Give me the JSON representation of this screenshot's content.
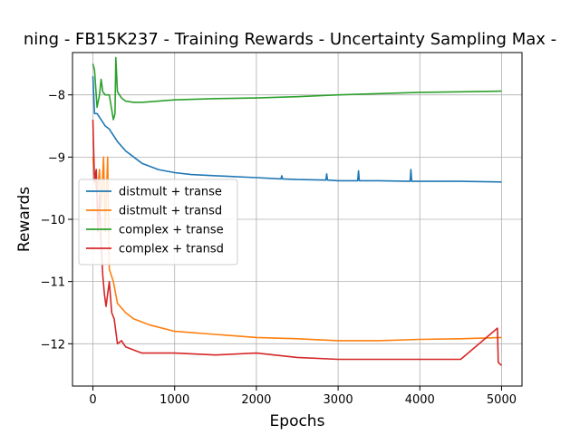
{
  "chart_data": {
    "type": "line",
    "title": "ning - FB15K237 - Training Rewards - Uncertainty Sampling Max -",
    "xlabel": "Epochs",
    "ylabel": "Rewards",
    "xlim": [
      -250,
      5250
    ],
    "ylim": [
      -12.68,
      -7.32
    ],
    "xticks": [
      0,
      1000,
      2000,
      3000,
      4000,
      5000
    ],
    "xtick_labels": [
      "0",
      "1000",
      "2000",
      "3000",
      "4000",
      "5000"
    ],
    "yticks": [
      -8,
      -9,
      -10,
      -11,
      -12
    ],
    "ytick_labels": [
      "−8",
      "−9",
      "−10",
      "−11",
      "−12"
    ],
    "grid": true,
    "legend_position": "center-left",
    "series": [
      {
        "name": "distmult + transe",
        "color": "#1f77b4",
        "x": [
          0,
          20,
          50,
          100,
          150,
          200,
          300,
          400,
          500,
          600,
          800,
          1000,
          1200,
          1500,
          2000,
          2300,
          2310,
          2320,
          2500,
          2850,
          2860,
          2870,
          3000,
          3240,
          3250,
          3260,
          3500,
          3880,
          3890,
          3900,
          4000,
          4500,
          5000
        ],
        "y": [
          -7.7,
          -8.3,
          -8.3,
          -8.4,
          -8.5,
          -8.55,
          -8.75,
          -8.9,
          -9.0,
          -9.1,
          -9.2,
          -9.25,
          -9.28,
          -9.3,
          -9.33,
          -9.35,
          -9.3,
          -9.35,
          -9.36,
          -9.37,
          -9.27,
          -9.37,
          -9.38,
          -9.38,
          -9.22,
          -9.38,
          -9.38,
          -9.39,
          -9.2,
          -9.39,
          -9.39,
          -9.39,
          -9.4
        ]
      },
      {
        "name": "distmult + transd",
        "color": "#ff7f0e",
        "x": [
          0,
          20,
          50,
          80,
          100,
          130,
          150,
          180,
          200,
          250,
          300,
          400,
          500,
          700,
          1000,
          1500,
          2000,
          2500,
          3000,
          3500,
          4000,
          4500,
          5000
        ],
        "y": [
          -9.0,
          -9.3,
          -9.6,
          -9.2,
          -9.8,
          -9.0,
          -10.2,
          -9.0,
          -10.8,
          -11.0,
          -11.35,
          -11.5,
          -11.6,
          -11.7,
          -11.8,
          -11.85,
          -11.9,
          -11.92,
          -11.95,
          -11.95,
          -11.93,
          -11.92,
          -11.9
        ]
      },
      {
        "name": "complex + transe",
        "color": "#2ca02c",
        "x": [
          0,
          20,
          50,
          80,
          100,
          120,
          150,
          200,
          250,
          270,
          280,
          300,
          350,
          400,
          500,
          600,
          800,
          1000,
          1500,
          2000,
          2500,
          3000,
          3500,
          4000,
          4500,
          5000
        ],
        "y": [
          -7.5,
          -7.6,
          -8.2,
          -8.0,
          -7.75,
          -7.95,
          -8.0,
          -8.0,
          -8.4,
          -8.3,
          -7.4,
          -7.95,
          -8.05,
          -8.1,
          -8.12,
          -8.12,
          -8.1,
          -8.08,
          -8.06,
          -8.05,
          -8.03,
          -8.0,
          -7.98,
          -7.96,
          -7.95,
          -7.94
        ]
      },
      {
        "name": "complex + transd",
        "color": "#d62728",
        "x": [
          0,
          20,
          40,
          60,
          80,
          100,
          120,
          140,
          160,
          180,
          200,
          230,
          260,
          300,
          350,
          400,
          500,
          600,
          800,
          1000,
          1500,
          2000,
          2500,
          3000,
          3500,
          4000,
          4500,
          4950,
          4960,
          5000
        ],
        "y": [
          -8.4,
          -9.4,
          -9.2,
          -10.2,
          -9.6,
          -10.4,
          -10.9,
          -11.2,
          -11.4,
          -11.2,
          -11.0,
          -11.5,
          -11.6,
          -12.0,
          -11.95,
          -12.05,
          -12.1,
          -12.15,
          -12.15,
          -12.15,
          -12.18,
          -12.15,
          -12.22,
          -12.25,
          -12.25,
          -12.25,
          -12.25,
          -11.75,
          -12.3,
          -12.35
        ]
      }
    ]
  }
}
